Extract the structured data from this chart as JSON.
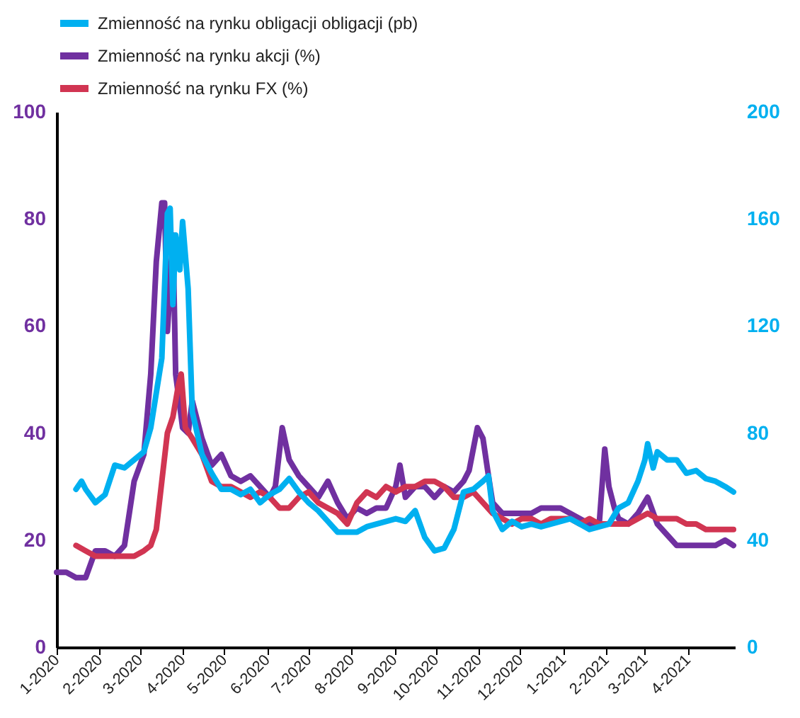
{
  "chart_data": {
    "type": "line",
    "legend": "top",
    "xlim": [
      "2020-01-01",
      "2021-05-05"
    ],
    "xticks": [
      {
        "value": "2020-01-01",
        "label": "1-2020"
      },
      {
        "value": "2020-02-01",
        "label": "2-2020"
      },
      {
        "value": "2020-03-01",
        "label": "3-2020"
      },
      {
        "value": "2020-04-01",
        "label": "4-2020"
      },
      {
        "value": "2020-05-01",
        "label": "5-2020"
      },
      {
        "value": "2020-06-01",
        "label": "6-2020"
      },
      {
        "value": "2020-07-01",
        "label": "7-2020"
      },
      {
        "value": "2020-08-01",
        "label": "8-2020"
      },
      {
        "value": "2020-09-01",
        "label": "9-2020"
      },
      {
        "value": "2020-10-01",
        "label": "10-2020"
      },
      {
        "value": "2020-11-01",
        "label": "11-2020"
      },
      {
        "value": "2020-12-01",
        "label": "12-2020"
      },
      {
        "value": "2021-01-01",
        "label": "1-2021"
      },
      {
        "value": "2021-02-01",
        "label": "2-2021"
      },
      {
        "value": "2021-03-01",
        "label": "3-2021"
      },
      {
        "value": "2021-04-01",
        "label": "4-2021"
      }
    ],
    "ylim": [
      0,
      100
    ],
    "yticks": [
      0,
      20,
      40,
      60,
      80,
      100
    ],
    "y2lim": [
      0,
      200
    ],
    "y2ticks": [
      0,
      40,
      80,
      120,
      160,
      200
    ],
    "series": [
      {
        "name": "Zmienność na rynku obligacji obligacji (pb)",
        "color": "#00b0f0",
        "axis": "y2",
        "x": [
          "2020-01-15",
          "2020-01-19",
          "2020-01-22",
          "2020-01-29",
          "2020-02-05",
          "2020-02-12",
          "2020-02-19",
          "2020-02-26",
          "2020-03-04",
          "2020-03-09",
          "2020-03-13",
          "2020-03-17",
          "2020-03-21",
          "2020-03-23",
          "2020-03-25",
          "2020-03-27",
          "2020-03-30",
          "2020-04-01",
          "2020-04-05",
          "2020-04-08",
          "2020-04-15",
          "2020-04-22",
          "2020-04-29",
          "2020-05-06",
          "2020-05-13",
          "2020-05-20",
          "2020-05-27",
          "2020-06-03",
          "2020-06-10",
          "2020-06-17",
          "2020-06-24",
          "2020-07-01",
          "2020-07-08",
          "2020-07-15",
          "2020-07-22",
          "2020-07-29",
          "2020-08-05",
          "2020-08-12",
          "2020-08-19",
          "2020-08-26",
          "2020-09-02",
          "2020-09-09",
          "2020-09-16",
          "2020-09-23",
          "2020-09-30",
          "2020-10-07",
          "2020-10-14",
          "2020-10-21",
          "2020-10-28",
          "2020-11-04",
          "2020-11-08",
          "2020-11-11",
          "2020-11-18",
          "2020-11-25",
          "2020-12-02",
          "2020-12-09",
          "2020-12-16",
          "2020-12-23",
          "2020-12-30",
          "2021-01-06",
          "2021-01-13",
          "2021-01-20",
          "2021-01-27",
          "2021-02-03",
          "2021-02-10",
          "2021-02-17",
          "2021-02-24",
          "2021-03-01",
          "2021-03-03",
          "2021-03-07",
          "2021-03-10",
          "2021-03-17",
          "2021-03-24",
          "2021-03-31",
          "2021-04-07",
          "2021-04-14",
          "2021-04-21",
          "2021-04-28",
          "2021-05-04"
        ],
        "values": [
          59,
          62,
          59,
          54,
          57,
          68,
          67,
          70,
          73,
          82,
          95,
          108,
          162,
          164,
          128,
          154,
          141,
          159,
          134,
          88,
          72,
          65,
          59,
          59,
          57,
          59,
          54,
          57,
          59,
          63,
          58,
          54,
          51,
          47,
          43,
          43,
          43,
          45,
          46,
          47,
          48,
          47,
          51,
          41,
          36,
          37,
          44,
          58,
          59,
          62,
          64,
          51,
          44,
          47,
          45,
          46,
          45,
          46,
          47,
          48,
          46,
          44,
          45,
          46,
          52,
          54,
          62,
          70,
          76,
          67,
          73,
          70,
          70,
          65,
          66,
          63,
          62,
          60,
          58
        ]
      },
      {
        "name": "Zmienność na rynku akcji (%)",
        "color": "#7030a0",
        "x": [
          "2020-01-01",
          "2020-01-08",
          "2020-01-15",
          "2020-01-22",
          "2020-01-29",
          "2020-02-05",
          "2020-02-12",
          "2020-02-19",
          "2020-02-26",
          "2020-03-04",
          "2020-03-09",
          "2020-03-13",
          "2020-03-17",
          "2020-03-19",
          "2020-03-21",
          "2020-03-23",
          "2020-03-25",
          "2020-03-27",
          "2020-04-01",
          "2020-04-05",
          "2020-04-08",
          "2020-04-15",
          "2020-04-22",
          "2020-04-29",
          "2020-05-06",
          "2020-05-13",
          "2020-05-20",
          "2020-05-27",
          "2020-06-03",
          "2020-06-07",
          "2020-06-12",
          "2020-06-17",
          "2020-06-24",
          "2020-07-01",
          "2020-07-08",
          "2020-07-15",
          "2020-07-22",
          "2020-07-29",
          "2020-08-05",
          "2020-08-12",
          "2020-08-19",
          "2020-08-26",
          "2020-09-02",
          "2020-09-05",
          "2020-09-09",
          "2020-09-16",
          "2020-09-23",
          "2020-09-30",
          "2020-10-07",
          "2020-10-14",
          "2020-10-21",
          "2020-10-25",
          "2020-10-31",
          "2020-11-04",
          "2020-11-08",
          "2020-11-11",
          "2020-11-18",
          "2020-11-25",
          "2020-12-02",
          "2020-12-09",
          "2020-12-16",
          "2020-12-23",
          "2020-12-30",
          "2021-01-06",
          "2021-01-13",
          "2021-01-20",
          "2021-01-27",
          "2021-01-31",
          "2021-02-03",
          "2021-02-07",
          "2021-02-10",
          "2021-02-17",
          "2021-02-24",
          "2021-03-03",
          "2021-03-10",
          "2021-03-17",
          "2021-03-24",
          "2021-03-31",
          "2021-04-07",
          "2021-04-14",
          "2021-04-21",
          "2021-04-28",
          "2021-05-04"
        ],
        "values": [
          14,
          14,
          13,
          13,
          18,
          18,
          17,
          19,
          31,
          36,
          51,
          72,
          83,
          83,
          59,
          67,
          77,
          51,
          41,
          40,
          46,
          39,
          34,
          36,
          32,
          31,
          32,
          30,
          28,
          30,
          41,
          35,
          32,
          30,
          28,
          31,
          27,
          24,
          26,
          25,
          26,
          26,
          30,
          34,
          28,
          30,
          30,
          28,
          30,
          29,
          31,
          33,
          41,
          39,
          32,
          27,
          25,
          25,
          25,
          25,
          26,
          26,
          26,
          25,
          24,
          23,
          23,
          37,
          30,
          26,
          24,
          23,
          25,
          28,
          23,
          21,
          19,
          19,
          19,
          19,
          19,
          20,
          19
        ]
      },
      {
        "name": "Zmienność na rynku FX (%)",
        "color": "#d13552",
        "x": [
          "2020-01-15",
          "2020-01-22",
          "2020-01-29",
          "2020-02-05",
          "2020-02-12",
          "2020-02-19",
          "2020-02-26",
          "2020-03-04",
          "2020-03-09",
          "2020-03-13",
          "2020-03-17",
          "2020-03-21",
          "2020-03-25",
          "2020-03-29",
          "2020-03-31",
          "2020-04-03",
          "2020-04-08",
          "2020-04-15",
          "2020-04-22",
          "2020-04-29",
          "2020-05-06",
          "2020-05-13",
          "2020-05-20",
          "2020-05-27",
          "2020-06-03",
          "2020-06-10",
          "2020-06-17",
          "2020-06-24",
          "2020-07-01",
          "2020-07-08",
          "2020-07-15",
          "2020-07-22",
          "2020-07-29",
          "2020-08-05",
          "2020-08-12",
          "2020-08-19",
          "2020-08-26",
          "2020-09-02",
          "2020-09-09",
          "2020-09-16",
          "2020-09-23",
          "2020-09-30",
          "2020-10-07",
          "2020-10-14",
          "2020-10-21",
          "2020-10-28",
          "2020-11-04",
          "2020-11-11",
          "2020-11-18",
          "2020-11-25",
          "2020-12-02",
          "2020-12-09",
          "2020-12-16",
          "2020-12-23",
          "2020-12-30",
          "2021-01-06",
          "2021-01-13",
          "2021-01-20",
          "2021-01-27",
          "2021-02-03",
          "2021-02-10",
          "2021-02-17",
          "2021-02-24",
          "2021-03-03",
          "2021-03-10",
          "2021-03-17",
          "2021-03-24",
          "2021-03-31",
          "2021-04-07",
          "2021-04-14",
          "2021-04-21",
          "2021-04-28",
          "2021-05-04"
        ],
        "values": [
          19,
          18,
          17,
          17,
          17,
          17,
          17,
          18,
          19,
          22,
          31,
          40,
          43,
          49,
          51,
          41,
          39,
          36,
          31,
          30,
          30,
          29,
          28,
          29,
          28,
          26,
          26,
          28,
          29,
          27,
          26,
          25,
          23,
          27,
          29,
          28,
          30,
          29,
          30,
          30,
          31,
          31,
          30,
          28,
          28,
          29,
          27,
          25,
          24,
          23,
          24,
          24,
          23,
          24,
          24,
          24,
          23,
          24,
          23,
          23,
          23,
          23,
          24,
          25,
          24,
          24,
          24,
          23,
          23,
          22,
          22,
          22,
          22
        ]
      }
    ]
  }
}
